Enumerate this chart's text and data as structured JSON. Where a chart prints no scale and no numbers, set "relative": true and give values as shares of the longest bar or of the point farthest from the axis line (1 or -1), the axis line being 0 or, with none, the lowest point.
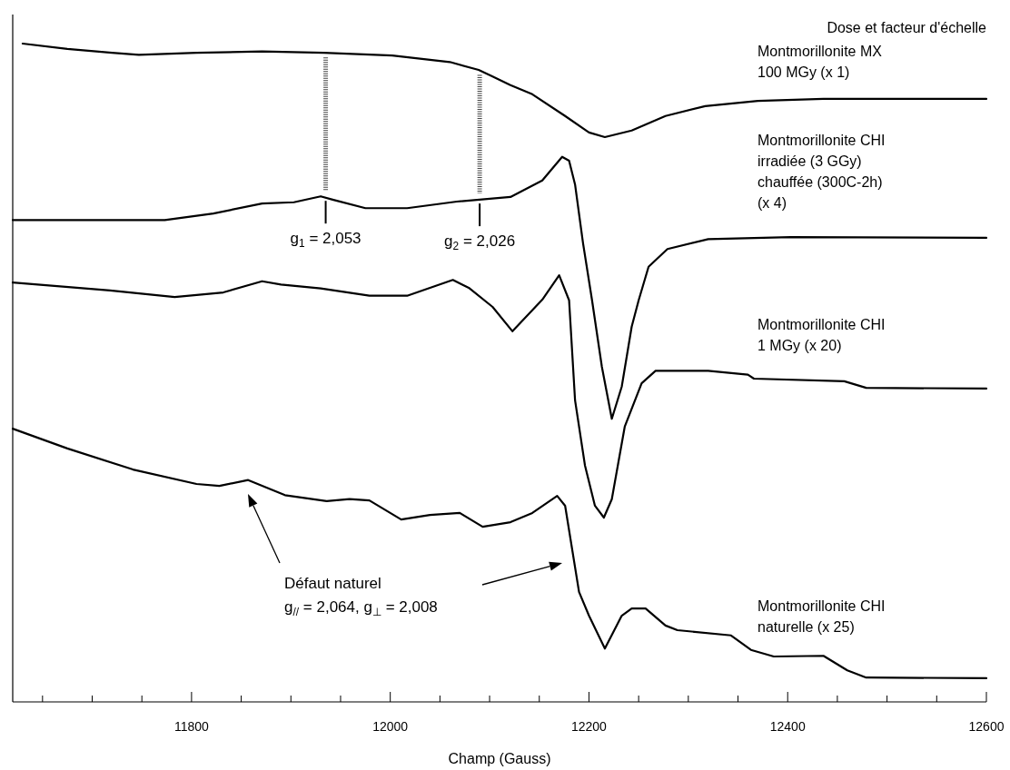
{
  "chart_data": {
    "type": "line",
    "relative": true,
    "xlabel": "Champ (Gauss)",
    "legend_title": "Dose et facteur d'échelle",
    "legend": false,
    "tick_labels": "x",
    "xlim": [
      11620,
      12600
    ],
    "xticks": [
      {
        "value": 11650,
        "label": null
      },
      {
        "value": 11700,
        "label": null
      },
      {
        "value": 11750,
        "label": null
      },
      11800,
      {
        "value": 11850,
        "label": null
      },
      {
        "value": 11900,
        "label": null
      },
      {
        "value": 11950,
        "label": null
      },
      12000,
      {
        "value": 12050,
        "label": null
      },
      {
        "value": 12100,
        "label": null
      },
      {
        "value": 12150,
        "label": null
      },
      12200,
      {
        "value": 12250,
        "label": null
      },
      {
        "value": 12300,
        "label": null
      },
      {
        "value": 12350,
        "label": null
      },
      12400,
      {
        "value": 12450,
        "label": null
      },
      {
        "value": 12500,
        "label": null
      },
      {
        "value": 12550,
        "label": null
      },
      12600
    ],
    "series": [
      {
        "name": "Montmorillonite MX\n100 MGy (x 1)",
        "color": "#000000",
        "x": [
          11630,
          11675,
          11720,
          11747,
          11805,
          11871,
          11933,
          12002,
          12060,
          12089,
          12103,
          12121,
          12143,
          12176,
          12200,
          12216,
          12243,
          12277,
          12317,
          12370,
          12436,
          12600
        ],
        "values": [
          1.0,
          0.992,
          0.986,
          0.983,
          0.986,
          0.988,
          0.986,
          0.982,
          0.972,
          0.96,
          0.95,
          0.937,
          0.923,
          0.89,
          0.865,
          0.858,
          0.868,
          0.89,
          0.905,
          0.913,
          0.916,
          0.916
        ]
      },
      {
        "name": "Montmorillonite CHI\nirradiée (3 GGy)\nchauffée (300C-2h)\n(x 4)",
        "color": "#000000",
        "x": [
          11620,
          11773,
          11822,
          11871,
          11903,
          11930,
          11942,
          11975,
          12017,
          12067,
          12121,
          12153,
          12173,
          12180,
          12186,
          12194,
          12203,
          12213,
          12223,
          12233,
          12243,
          12250,
          12260,
          12279,
          12320,
          12403,
          12600
        ],
        "values": [
          0.732,
          0.732,
          0.742,
          0.757,
          0.759,
          0.768,
          0.763,
          0.75,
          0.75,
          0.76,
          0.767,
          0.792,
          0.828,
          0.822,
          0.786,
          0.697,
          0.611,
          0.509,
          0.43,
          0.479,
          0.57,
          0.61,
          0.661,
          0.688,
          0.703,
          0.706,
          0.705
        ]
      },
      {
        "name": "Montmorillonite CHI\n1 MGy (x 20)",
        "color": "#000000",
        "x": [
          11620,
          11718,
          11783,
          11832,
          11871,
          11890,
          11930,
          11979,
          12017,
          12063,
          12079,
          12103,
          12123,
          12153,
          12170,
          12180,
          12186,
          12196,
          12206,
          12215,
          12223,
          12236,
          12253,
          12267,
          12320,
          12360,
          12366,
          12457,
          12479,
          12600
        ],
        "values": [
          0.637,
          0.625,
          0.615,
          0.622,
          0.639,
          0.634,
          0.628,
          0.617,
          0.617,
          0.641,
          0.629,
          0.6,
          0.563,
          0.611,
          0.648,
          0.61,
          0.458,
          0.359,
          0.298,
          0.28,
          0.308,
          0.418,
          0.484,
          0.503,
          0.503,
          0.497,
          0.491,
          0.487,
          0.477,
          0.476
        ]
      },
      {
        "name": "Montmorillonite CHI\nnaturelle (x 25)",
        "color": "#000000",
        "x": [
          11620,
          11675,
          11741,
          11805,
          11828,
          11857,
          11894,
          11936,
          11959,
          11979,
          12011,
          12040,
          12070,
          12093,
          12121,
          12143,
          12168,
          12176,
          12190,
          12200,
          12216,
          12233,
          12243,
          12257,
          12277,
          12289,
          12343,
          12363,
          12386,
          12436,
          12460,
          12479,
          12600
        ],
        "values": [
          0.415,
          0.385,
          0.353,
          0.331,
          0.328,
          0.337,
          0.314,
          0.305,
          0.308,
          0.306,
          0.277,
          0.284,
          0.287,
          0.266,
          0.273,
          0.287,
          0.313,
          0.298,
          0.167,
          0.131,
          0.081,
          0.131,
          0.142,
          0.142,
          0.116,
          0.109,
          0.101,
          0.079,
          0.069,
          0.07,
          0.048,
          0.037,
          0.036
        ]
      }
    ],
    "annotations": [
      {
        "text": "g$_{1}$ = 2,053",
        "x": 11935,
        "y": 0.768
      },
      {
        "text": "g$_{2}$ = 2,026",
        "x": 12090,
        "y": 0.764
      },
      "Défaut naturel\ng$_{//}$ = 2,064, g$_{⊥}$ = 2,008"
    ]
  }
}
